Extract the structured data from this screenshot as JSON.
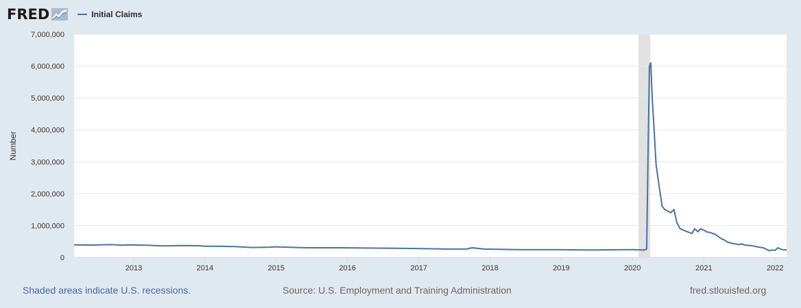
{
  "header": {
    "logo_text": "FRED",
    "logo_icon": "fred-graph-icon",
    "legend_label": "Initial Claims"
  },
  "colors": {
    "line": "#4572a7",
    "recession": "#e1e1e1",
    "background": "#e1e9f0",
    "plot": "#ffffff"
  },
  "chart_data": {
    "type": "line",
    "title": "",
    "xlabel": "",
    "ylabel": "Number",
    "ylim": [
      0,
      7000000
    ],
    "yticks": [
      0,
      1000000,
      2000000,
      3000000,
      4000000,
      5000000,
      6000000,
      7000000
    ],
    "ytick_labels": [
      "0",
      "1,000,000",
      "2,000,000",
      "3,000,000",
      "4,000,000",
      "5,000,000",
      "6,000,000",
      "7,000,000"
    ],
    "xlim": [
      "2012-03-01",
      "2022-03-01"
    ],
    "xtick_labels": [
      "2013",
      "2014",
      "2015",
      "2016",
      "2017",
      "2018",
      "2019",
      "2020",
      "2021",
      "2022"
    ],
    "xtick_dates": [
      "2013-01-01",
      "2014-01-01",
      "2015-01-01",
      "2016-01-01",
      "2017-01-01",
      "2018-01-01",
      "2019-01-01",
      "2020-01-01",
      "2021-01-01",
      "2022-01-01"
    ],
    "grid": true,
    "legend": "top-left",
    "recessions": [
      [
        "2020-02-01",
        "2020-04-01"
      ]
    ],
    "series": [
      {
        "name": "Initial Claims",
        "x": [
          "2012-03-01",
          "2012-06-01",
          "2012-09-01",
          "2012-11-01",
          "2012-12-01",
          "2013-03-01",
          "2013-06-01",
          "2013-09-01",
          "2013-12-01",
          "2014-01-01",
          "2014-03-01",
          "2014-06-01",
          "2014-09-01",
          "2014-12-01",
          "2015-01-01",
          "2015-06-01",
          "2015-12-01",
          "2016-06-01",
          "2016-12-01",
          "2017-06-01",
          "2017-09-01",
          "2017-10-01",
          "2017-12-01",
          "2018-06-01",
          "2018-12-01",
          "2019-06-01",
          "2019-12-01",
          "2020-01-01",
          "2020-03-01",
          "2020-03-14",
          "2020-03-21",
          "2020-03-28",
          "2020-04-04",
          "2020-04-11",
          "2020-04-18",
          "2020-05-01",
          "2020-05-15",
          "2020-06-01",
          "2020-06-15",
          "2020-07-01",
          "2020-07-15",
          "2020-08-01",
          "2020-08-08",
          "2020-08-15",
          "2020-09-01",
          "2020-10-01",
          "2020-11-01",
          "2020-11-15",
          "2020-12-01",
          "2020-12-15",
          "2021-01-01",
          "2021-01-15",
          "2021-02-01",
          "2021-03-01",
          "2021-04-01",
          "2021-04-15",
          "2021-05-01",
          "2021-06-01",
          "2021-07-01",
          "2021-07-15",
          "2021-08-01",
          "2021-09-01",
          "2021-10-01",
          "2021-11-01",
          "2021-11-15",
          "2021-12-01",
          "2021-12-15",
          "2022-01-01",
          "2022-01-15",
          "2022-02-01",
          "2022-03-01"
        ],
        "y": [
          390000,
          385000,
          400000,
          380000,
          390000,
          380000,
          360000,
          370000,
          365000,
          350000,
          350000,
          340000,
          310000,
          320000,
          330000,
          300000,
          300000,
          290000,
          280000,
          260000,
          260000,
          300000,
          260000,
          240000,
          240000,
          230000,
          240000,
          240000,
          230000,
          260000,
          3300000,
          6000000,
          6100000,
          5000000,
          4300000,
          2900000,
          2300000,
          1600000,
          1500000,
          1450000,
          1400000,
          1500000,
          1300000,
          1100000,
          900000,
          820000,
          750000,
          900000,
          800000,
          900000,
          850000,
          800000,
          780000,
          720000,
          580000,
          550000,
          480000,
          430000,
          400000,
          420000,
          380000,
          370000,
          330000,
          300000,
          260000,
          210000,
          230000,
          220000,
          300000,
          250000,
          230000
        ]
      }
    ]
  },
  "footer": {
    "left": "Shaded areas indicate U.S. recessions.",
    "center": "Source: U.S. Employment and Training Administration",
    "right": "fred.stlouisfed.org"
  }
}
